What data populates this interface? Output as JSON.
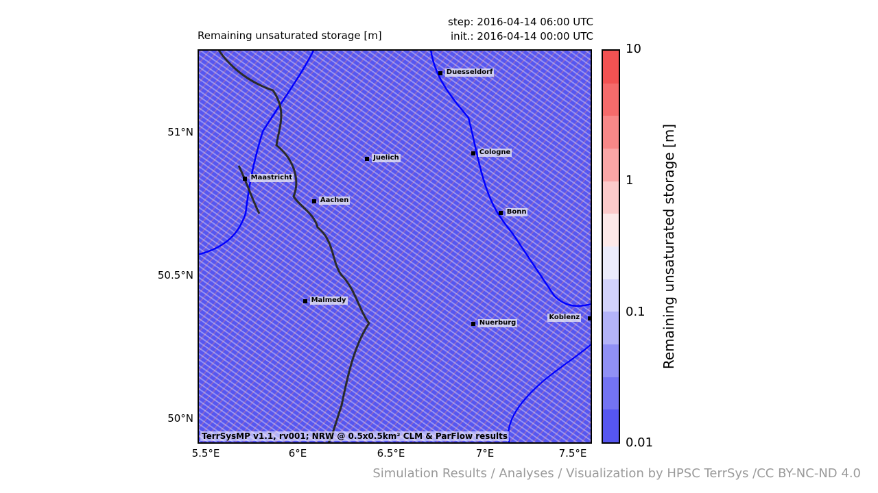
{
  "title": "Remaining unsaturated storage [m]",
  "step": "step: 2016-04-14 06:00 UTC",
  "init": "init.: 2016-04-14 00:00 UTC",
  "credit": "Simulation Results / Analyses / Visualization by HPSC TerrSys /CC BY-NC-ND 4.0",
  "footer_note": "TerrSysMP v1.1, rv001; NRW @ 0.5x0.5km² CLM & ParFlow results",
  "lat_labels": [
    "51°N",
    "50.5°N",
    "50°N"
  ],
  "lon_labels": [
    "5.5°E",
    "6°E",
    "6.5°E",
    "7°E",
    "7.5°E"
  ],
  "cities": [
    {
      "name": "Duesseldorf",
      "lon": 6.77,
      "lat": 51.22
    },
    {
      "name": "Cologne",
      "lon": 6.95,
      "lat": 50.94
    },
    {
      "name": "Juelich",
      "lon": 6.37,
      "lat": 50.92
    },
    {
      "name": "Maastricht",
      "lon": 5.7,
      "lat": 50.85
    },
    {
      "name": "Aachen",
      "lon": 6.08,
      "lat": 50.77
    },
    {
      "name": "Bonn",
      "lon": 7.1,
      "lat": 50.73
    },
    {
      "name": "Malmedy",
      "lon": 6.03,
      "lat": 50.42
    },
    {
      "name": "Nuerburg",
      "lon": 6.95,
      "lat": 50.34
    },
    {
      "name": "Koblenz",
      "lon": 7.59,
      "lat": 50.36
    }
  ],
  "colorbar": {
    "label": "Remaining unsaturated storage [m]",
    "tick_labels": [
      "10",
      "1",
      "0.1",
      "0.01"
    ],
    "colors": [
      "#f25252",
      "#f56b6b",
      "#f88888",
      "#faa6a6",
      "#fccaca",
      "#fde9e9",
      "#ececfb",
      "#d2d2fb",
      "#b3b3f8",
      "#9090f5",
      "#7373f3",
      "#5656f0"
    ]
  }
}
